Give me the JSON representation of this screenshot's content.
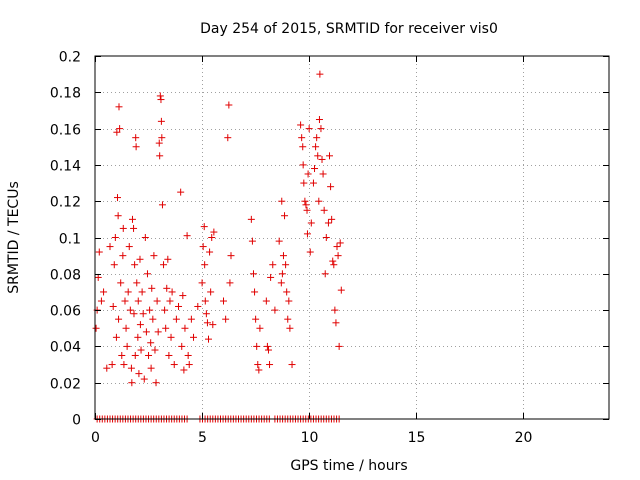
{
  "chart_data": {
    "type": "scatter",
    "title": "Day 254 of 2015, SRMTID for receiver vis0",
    "xlabel": "GPS time / hours",
    "ylabel": "SRMTID / TECUs",
    "xlim": [
      0,
      24
    ],
    "ylim": [
      0,
      0.2
    ],
    "xticks": [
      0,
      5,
      10,
      15,
      20
    ],
    "xtick_labels": [
      "0",
      "5",
      "10",
      "15",
      "20"
    ],
    "yticks": [
      0,
      0.02,
      0.04,
      0.06,
      0.08,
      0.1,
      0.12,
      0.14,
      0.16,
      0.18,
      0.2
    ],
    "ytick_labels": [
      "0",
      "0.02",
      "0.04",
      "0.06",
      "0.08",
      "0.1",
      "0.12",
      "0.14",
      "0.16",
      "0.18",
      "0.2"
    ],
    "grid": true,
    "marker": "+",
    "color": "#e00000",
    "series": [
      {
        "name": "SRMTID",
        "points": [
          [
            0.05,
            0.05
          ],
          [
            0.1,
            0.06
          ],
          [
            0.15,
            0.078
          ],
          [
            0.2,
            0.092
          ],
          [
            0.3,
            0.065
          ],
          [
            0.4,
            0.07
          ],
          [
            0.55,
            0.028
          ],
          [
            0.7,
            0.095
          ],
          [
            0.8,
            0.03
          ],
          [
            0.85,
            0.062
          ],
          [
            0.9,
            0.085
          ],
          [
            0.95,
            0.1
          ],
          [
            1.0,
            0.045
          ],
          [
            1.02,
            0.158
          ],
          [
            1.05,
            0.122
          ],
          [
            1.08,
            0.112
          ],
          [
            1.1,
            0.055
          ],
          [
            1.12,
            0.172
          ],
          [
            1.15,
            0.16
          ],
          [
            1.2,
            0.075
          ],
          [
            1.25,
            0.035
          ],
          [
            1.3,
            0.09
          ],
          [
            1.32,
            0.105
          ],
          [
            1.35,
            0.03
          ],
          [
            1.4,
            0.065
          ],
          [
            1.45,
            0.05
          ],
          [
            1.5,
            0.04
          ],
          [
            1.55,
            0.07
          ],
          [
            1.6,
            0.095
          ],
          [
            1.65,
            0.06
          ],
          [
            1.7,
            0.028
          ],
          [
            1.72,
            0.02
          ],
          [
            1.75,
            0.11
          ],
          [
            1.8,
            0.105
          ],
          [
            1.82,
            0.058
          ],
          [
            1.85,
            0.085
          ],
          [
            1.88,
            0.035
          ],
          [
            1.9,
            0.155
          ],
          [
            1.92,
            0.15
          ],
          [
            1.95,
            0.075
          ],
          [
            2.0,
            0.045
          ],
          [
            2.02,
            0.065
          ],
          [
            2.05,
            0.025
          ],
          [
            2.1,
            0.088
          ],
          [
            2.12,
            0.052
          ],
          [
            2.15,
            0.038
          ],
          [
            2.2,
            0.07
          ],
          [
            2.25,
            0.058
          ],
          [
            2.3,
            0.022
          ],
          [
            2.35,
            0.1
          ],
          [
            2.4,
            0.048
          ],
          [
            2.45,
            0.08
          ],
          [
            2.5,
            0.035
          ],
          [
            2.55,
            0.06
          ],
          [
            2.6,
            0.042
          ],
          [
            2.62,
            0.028
          ],
          [
            2.65,
            0.072
          ],
          [
            2.7,
            0.055
          ],
          [
            2.75,
            0.09
          ],
          [
            2.8,
            0.038
          ],
          [
            2.85,
            0.02
          ],
          [
            2.9,
            0.065
          ],
          [
            2.95,
            0.048
          ],
          [
            3.0,
            0.152
          ],
          [
            3.02,
            0.145
          ],
          [
            3.05,
            0.178
          ],
          [
            3.08,
            0.176
          ],
          [
            3.1,
            0.164
          ],
          [
            3.12,
            0.155
          ],
          [
            3.15,
            0.118
          ],
          [
            3.2,
            0.085
          ],
          [
            3.25,
            0.06
          ],
          [
            3.3,
            0.05
          ],
          [
            3.35,
            0.072
          ],
          [
            3.4,
            0.088
          ],
          [
            3.45,
            0.035
          ],
          [
            3.5,
            0.065
          ],
          [
            3.55,
            0.045
          ],
          [
            3.6,
            0.07
          ],
          [
            3.7,
            0.03
          ],
          [
            3.8,
            0.055
          ],
          [
            3.9,
            0.062
          ],
          [
            4.0,
            0.125
          ],
          [
            4.05,
            0.04
          ],
          [
            4.1,
            0.068
          ],
          [
            4.15,
            0.027
          ],
          [
            4.2,
            0.05
          ],
          [
            4.3,
            0.101
          ],
          [
            4.35,
            0.035
          ],
          [
            4.4,
            0.03
          ],
          [
            4.5,
            0.055
          ],
          [
            4.6,
            0.045
          ],
          [
            4.8,
            0.062
          ],
          [
            5.0,
            0.075
          ],
          [
            5.05,
            0.095
          ],
          [
            5.1,
            0.106
          ],
          [
            5.12,
            0.085
          ],
          [
            5.15,
            0.065
          ],
          [
            5.2,
            0.058
          ],
          [
            5.25,
            0.053
          ],
          [
            5.3,
            0.044
          ],
          [
            5.35,
            0.092
          ],
          [
            5.4,
            0.07
          ],
          [
            5.45,
            0.1
          ],
          [
            5.5,
            0.052
          ],
          [
            5.55,
            0.103
          ],
          [
            6.0,
            0.065
          ],
          [
            6.1,
            0.055
          ],
          [
            6.2,
            0.155
          ],
          [
            6.25,
            0.173
          ],
          [
            6.3,
            0.075
          ],
          [
            6.35,
            0.09
          ],
          [
            7.3,
            0.11
          ],
          [
            7.35,
            0.098
          ],
          [
            7.4,
            0.08
          ],
          [
            7.45,
            0.07
          ],
          [
            7.5,
            0.055
          ],
          [
            7.55,
            0.04
          ],
          [
            7.6,
            0.03
          ],
          [
            7.65,
            0.027
          ],
          [
            7.7,
            0.05
          ],
          [
            8.0,
            0.065
          ],
          [
            8.05,
            0.04
          ],
          [
            8.1,
            0.038
          ],
          [
            8.15,
            0.03
          ],
          [
            8.2,
            0.078
          ],
          [
            8.3,
            0.085
          ],
          [
            8.4,
            0.06
          ],
          [
            8.6,
            0.098
          ],
          [
            8.7,
            0.075
          ],
          [
            8.72,
            0.12
          ],
          [
            8.75,
            0.08
          ],
          [
            8.8,
            0.09
          ],
          [
            8.85,
            0.112
          ],
          [
            8.9,
            0.085
          ],
          [
            8.95,
            0.07
          ],
          [
            9.0,
            0.055
          ],
          [
            9.05,
            0.065
          ],
          [
            9.1,
            0.05
          ],
          [
            9.2,
            0.03
          ],
          [
            9.6,
            0.162
          ],
          [
            9.65,
            0.155
          ],
          [
            9.7,
            0.15
          ],
          [
            9.72,
            0.14
          ],
          [
            9.75,
            0.13
          ],
          [
            9.8,
            0.12
          ],
          [
            9.85,
            0.118
          ],
          [
            9.9,
            0.115
          ],
          [
            9.92,
            0.102
          ],
          [
            9.95,
            0.135
          ],
          [
            10.0,
            0.16
          ],
          [
            10.05,
            0.092
          ],
          [
            10.1,
            0.108
          ],
          [
            10.2,
            0.13
          ],
          [
            10.25,
            0.138
          ],
          [
            10.3,
            0.15
          ],
          [
            10.35,
            0.155
          ],
          [
            10.4,
            0.145
          ],
          [
            10.45,
            0.12
          ],
          [
            10.48,
            0.165
          ],
          [
            10.5,
            0.19
          ],
          [
            10.55,
            0.16
          ],
          [
            10.6,
            0.143
          ],
          [
            10.65,
            0.135
          ],
          [
            10.7,
            0.115
          ],
          [
            10.75,
            0.08
          ],
          [
            10.8,
            0.1
          ],
          [
            10.9,
            0.108
          ],
          [
            10.95,
            0.145
          ],
          [
            11.0,
            0.128
          ],
          [
            11.05,
            0.11
          ],
          [
            11.1,
            0.087
          ],
          [
            11.15,
            0.085
          ],
          [
            11.2,
            0.06
          ],
          [
            11.25,
            0.053
          ],
          [
            11.3,
            0.095
          ],
          [
            11.35,
            0.09
          ],
          [
            11.4,
            0.04
          ],
          [
            11.45,
            0.097
          ],
          [
            11.5,
            0.071
          ]
        ]
      }
    ],
    "baseline_zeros": {
      "y": 0,
      "x_ranges": [
        [
          0.1,
          4.3
        ],
        [
          4.9,
          8.2
        ],
        [
          8.4,
          11.5
        ]
      ],
      "x_step": 0.12
    }
  }
}
